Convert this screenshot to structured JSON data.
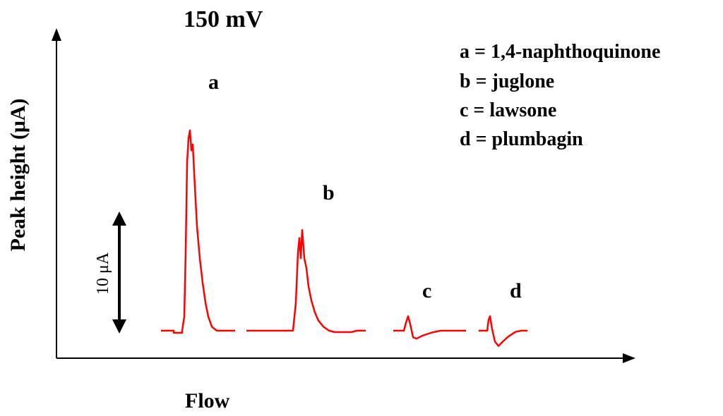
{
  "chart_data": {
    "type": "line",
    "title": "150 mV",
    "xlabel": "Flow",
    "ylabel": "Peak height (μA)",
    "scale_bar_label": "10 μA",
    "grid": false,
    "legend_position": "top-right",
    "legend": [
      "a = 1,4-naphthoquinone",
      "b = juglone",
      "c = lawsone",
      "d = plumbagin"
    ],
    "peaks": [
      {
        "label": "a",
        "height": 17.9
      },
      {
        "label": "b",
        "height": 9.0
      },
      {
        "label": "c",
        "height": 1.3
      },
      {
        "label": "d",
        "height": 1.3
      }
    ],
    "series_color": "#ff0000"
  }
}
